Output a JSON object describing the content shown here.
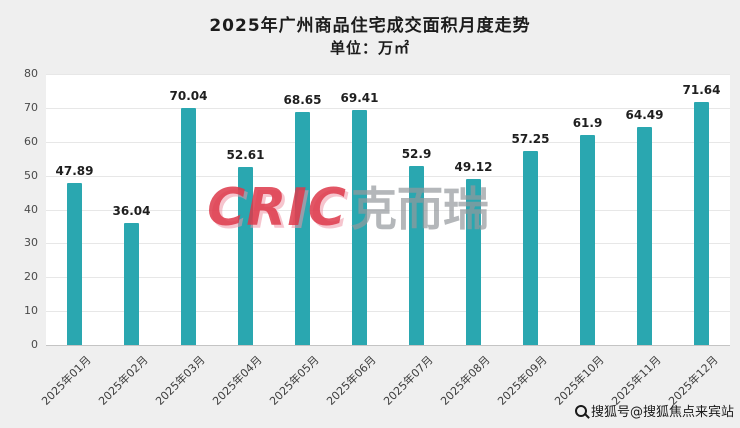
{
  "page": {
    "title": "2025年广州商品住宅成交面积月度走势",
    "subtitle": "单位：万㎡"
  },
  "chart_data": {
    "type": "bar",
    "title": "2025年广州商品住宅成交面积月度走势",
    "subtitle_unit": "单位：万㎡",
    "categories": [
      "2025年01月",
      "2025年02月",
      "2025年03月",
      "2025年04月",
      "2025年05月",
      "2025年06月",
      "2025年07月",
      "2025年08月",
      "2025年09月",
      "2025年10月",
      "2025年11月",
      "2025年12月"
    ],
    "values": [
      47.89,
      36.04,
      70.04,
      52.61,
      68.65,
      69.41,
      52.9,
      49.12,
      57.25,
      61.9,
      64.49,
      71.64
    ],
    "value_labels": [
      "47.89",
      "36.04",
      "70.04",
      "52.61",
      "68.65",
      "69.41",
      "52.9",
      "49.12",
      "57.25",
      "61.9",
      "64.49",
      "71.64"
    ],
    "xlabel": "",
    "ylabel": "",
    "ylim": [
      0,
      80
    ],
    "yticks": [
      0,
      10,
      20,
      30,
      40,
      50,
      60,
      70,
      80
    ],
    "grid": true,
    "legend": false,
    "bar_color": "#2AA7B0",
    "page_background": "#EFEFEF",
    "plot_background": "#FFFFFF"
  },
  "watermarks": {
    "cric": "CRIC",
    "cric_cn": "克而瑞",
    "bottom_right": "搜狐号@搜狐焦点来宾站"
  }
}
